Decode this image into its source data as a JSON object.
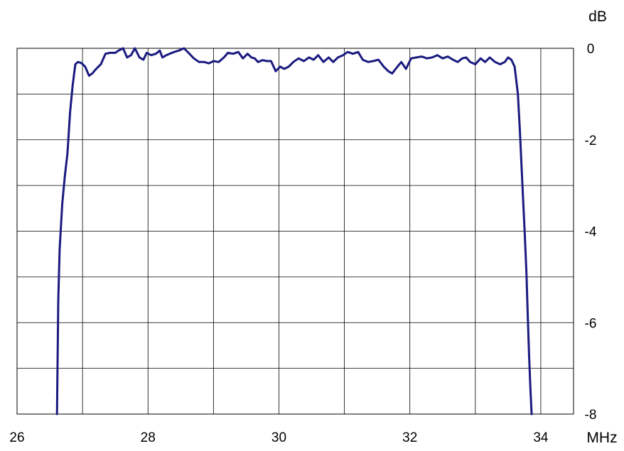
{
  "chart_data": {
    "type": "line",
    "xlabel": "MHz",
    "ylabel": "dB",
    "xlim": [
      26,
      34.5
    ],
    "ylim": [
      -8,
      0
    ],
    "x_ticks": [
      26,
      28,
      30,
      32,
      34
    ],
    "x_tick_labels": [
      "26",
      "28",
      "30",
      "32",
      "34"
    ],
    "y_ticks": [
      0,
      -2,
      -4,
      -6,
      -8
    ],
    "y_tick_labels": [
      "0",
      "-2",
      "-4",
      "-6",
      "-8"
    ],
    "x_gridlines": [
      27,
      28,
      29,
      30,
      31,
      32,
      33,
      34
    ],
    "y_gridlines": [
      -1,
      -2,
      -3,
      -4,
      -5,
      -6,
      -7
    ],
    "grid": true,
    "colors": {
      "line": "#1a1a80",
      "grid": "#000000"
    },
    "series": [
      {
        "x": [
          26.61,
          26.63,
          26.65,
          26.69,
          26.73,
          26.77,
          26.81,
          26.85,
          26.89,
          26.93,
          26.98,
          27.04,
          27.1,
          27.15,
          27.19,
          27.23,
          27.28,
          27.35,
          27.42,
          27.5,
          27.55,
          27.62,
          27.68,
          27.74,
          27.8,
          27.87,
          27.93,
          27.98,
          28.05,
          28.12,
          28.18,
          28.22,
          28.28,
          28.33,
          28.4,
          28.47,
          28.55,
          28.62,
          28.7,
          28.78,
          28.86,
          28.93,
          29.0,
          29.08,
          29.16,
          29.22,
          29.3,
          29.38,
          29.45,
          29.52,
          29.58,
          29.63,
          29.68,
          29.75,
          29.82,
          29.88,
          29.95,
          30.02,
          30.08,
          30.15,
          30.22,
          30.3,
          30.38,
          30.46,
          30.53,
          30.6,
          30.68,
          30.76,
          30.83,
          30.9,
          30.98,
          31.05,
          31.13,
          31.21,
          31.28,
          31.36,
          31.44,
          31.52,
          31.6,
          31.67,
          31.73,
          31.8,
          31.87,
          31.94,
          32.02,
          32.1,
          32.18,
          32.26,
          32.34,
          32.42,
          32.5,
          32.58,
          32.66,
          32.73,
          32.8,
          32.86,
          32.92,
          33.0,
          33.08,
          33.15,
          33.22,
          33.3,
          33.38,
          33.45,
          33.5,
          33.55,
          33.6,
          33.65,
          33.68,
          33.7,
          33.72,
          33.75,
          33.78,
          33.8,
          33.82,
          33.84,
          33.86
        ],
        "y": [
          -8.0,
          -5.5,
          -4.4,
          -3.4,
          -2.8,
          -2.3,
          -1.4,
          -0.8,
          -0.35,
          -0.3,
          -0.32,
          -0.4,
          -0.6,
          -0.55,
          -0.48,
          -0.42,
          -0.35,
          -0.12,
          -0.1,
          -0.1,
          -0.05,
          -0.0,
          -0.2,
          -0.15,
          -0.0,
          -0.2,
          -0.25,
          -0.1,
          -0.15,
          -0.12,
          -0.05,
          -0.2,
          -0.15,
          -0.12,
          -0.08,
          -0.05,
          -0.0,
          -0.1,
          -0.22,
          -0.3,
          -0.3,
          -0.33,
          -0.28,
          -0.3,
          -0.2,
          -0.1,
          -0.12,
          -0.08,
          -0.22,
          -0.12,
          -0.2,
          -0.22,
          -0.3,
          -0.26,
          -0.28,
          -0.28,
          -0.5,
          -0.4,
          -0.45,
          -0.4,
          -0.3,
          -0.22,
          -0.28,
          -0.2,
          -0.25,
          -0.15,
          -0.3,
          -0.2,
          -0.3,
          -0.2,
          -0.15,
          -0.08,
          -0.12,
          -0.08,
          -0.25,
          -0.3,
          -0.28,
          -0.25,
          -0.4,
          -0.5,
          -0.55,
          -0.42,
          -0.3,
          -0.45,
          -0.22,
          -0.2,
          -0.18,
          -0.22,
          -0.2,
          -0.15,
          -0.22,
          -0.18,
          -0.25,
          -0.3,
          -0.22,
          -0.2,
          -0.3,
          -0.35,
          -0.22,
          -0.3,
          -0.2,
          -0.3,
          -0.35,
          -0.3,
          -0.2,
          -0.25,
          -0.4,
          -1.0,
          -1.8,
          -2.4,
          -3.0,
          -3.9,
          -4.9,
          -5.8,
          -6.7,
          -7.4,
          -8.0
        ]
      }
    ]
  }
}
